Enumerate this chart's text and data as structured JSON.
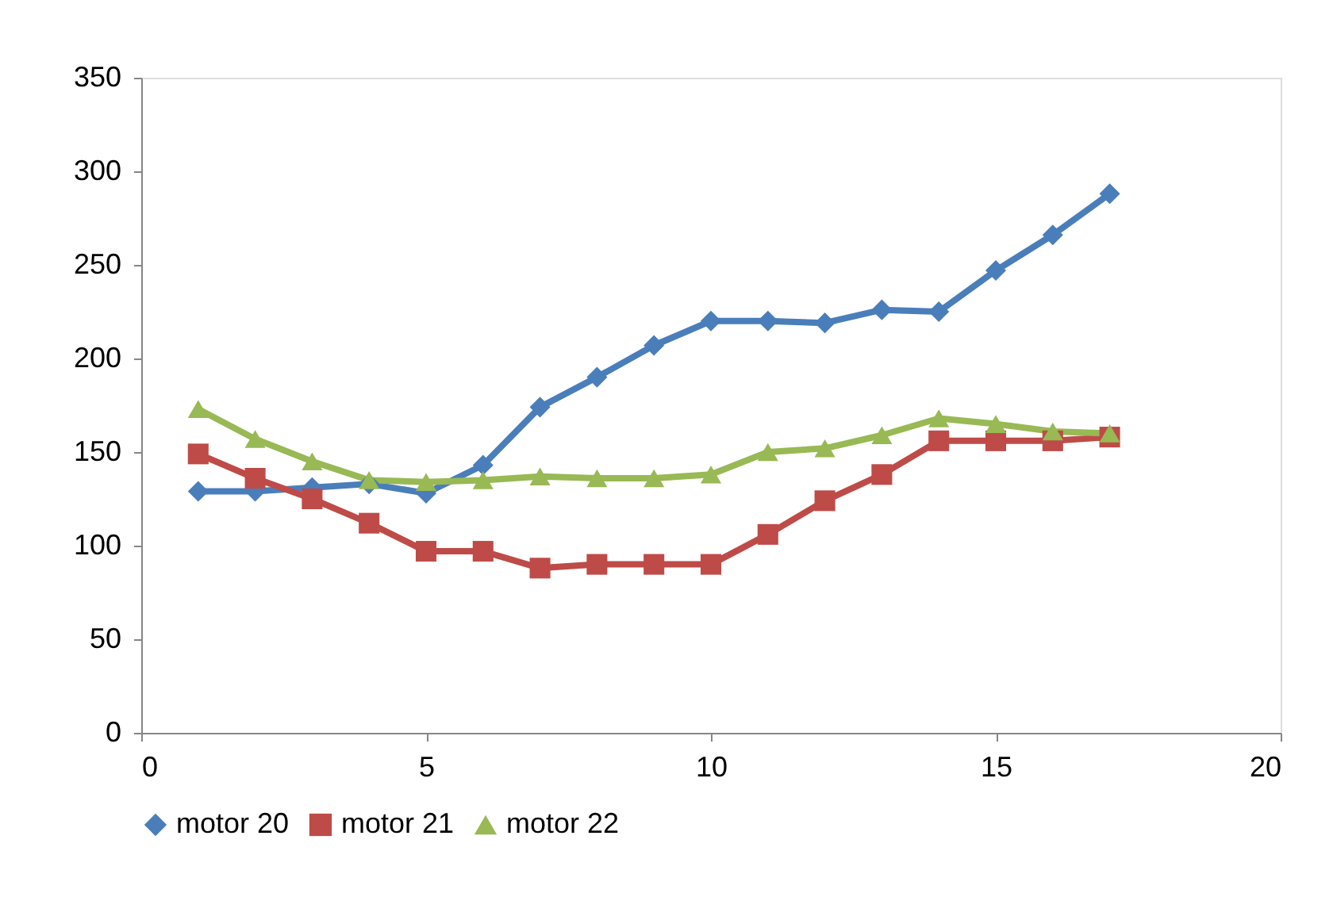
{
  "chart_data": {
    "type": "line",
    "x": [
      1,
      2,
      3,
      4,
      5,
      6,
      7,
      8,
      9,
      10,
      11,
      12,
      13,
      14,
      15,
      16,
      17
    ],
    "series": [
      {
        "name": "motor 20",
        "color": "#4a7ebb",
        "marker": "diamond",
        "values": [
          129,
          129,
          131,
          133,
          128,
          143,
          174,
          190,
          207,
          220,
          220,
          219,
          226,
          225,
          247,
          266,
          288
        ]
      },
      {
        "name": "motor 21",
        "color": "#be4b48",
        "marker": "square",
        "values": [
          149,
          136,
          125,
          112,
          97,
          97,
          88,
          90,
          90,
          90,
          106,
          124,
          138,
          156,
          156,
          156,
          158
        ]
      },
      {
        "name": "motor 22",
        "color": "#98b954",
        "marker": "triangle",
        "values": [
          173,
          157,
          145,
          135,
          134,
          135,
          137,
          136,
          136,
          138,
          150,
          152,
          159,
          168,
          165,
          161,
          160
        ]
      }
    ],
    "xlim": [
      0,
      20
    ],
    "xticks": [
      0,
      5,
      10,
      15,
      20
    ],
    "ylim": [
      0,
      350
    ],
    "yticks": [
      0,
      50,
      100,
      150,
      200,
      250,
      300,
      350
    ],
    "grid": false,
    "legend": "bottom",
    "line_style": "solid"
  }
}
